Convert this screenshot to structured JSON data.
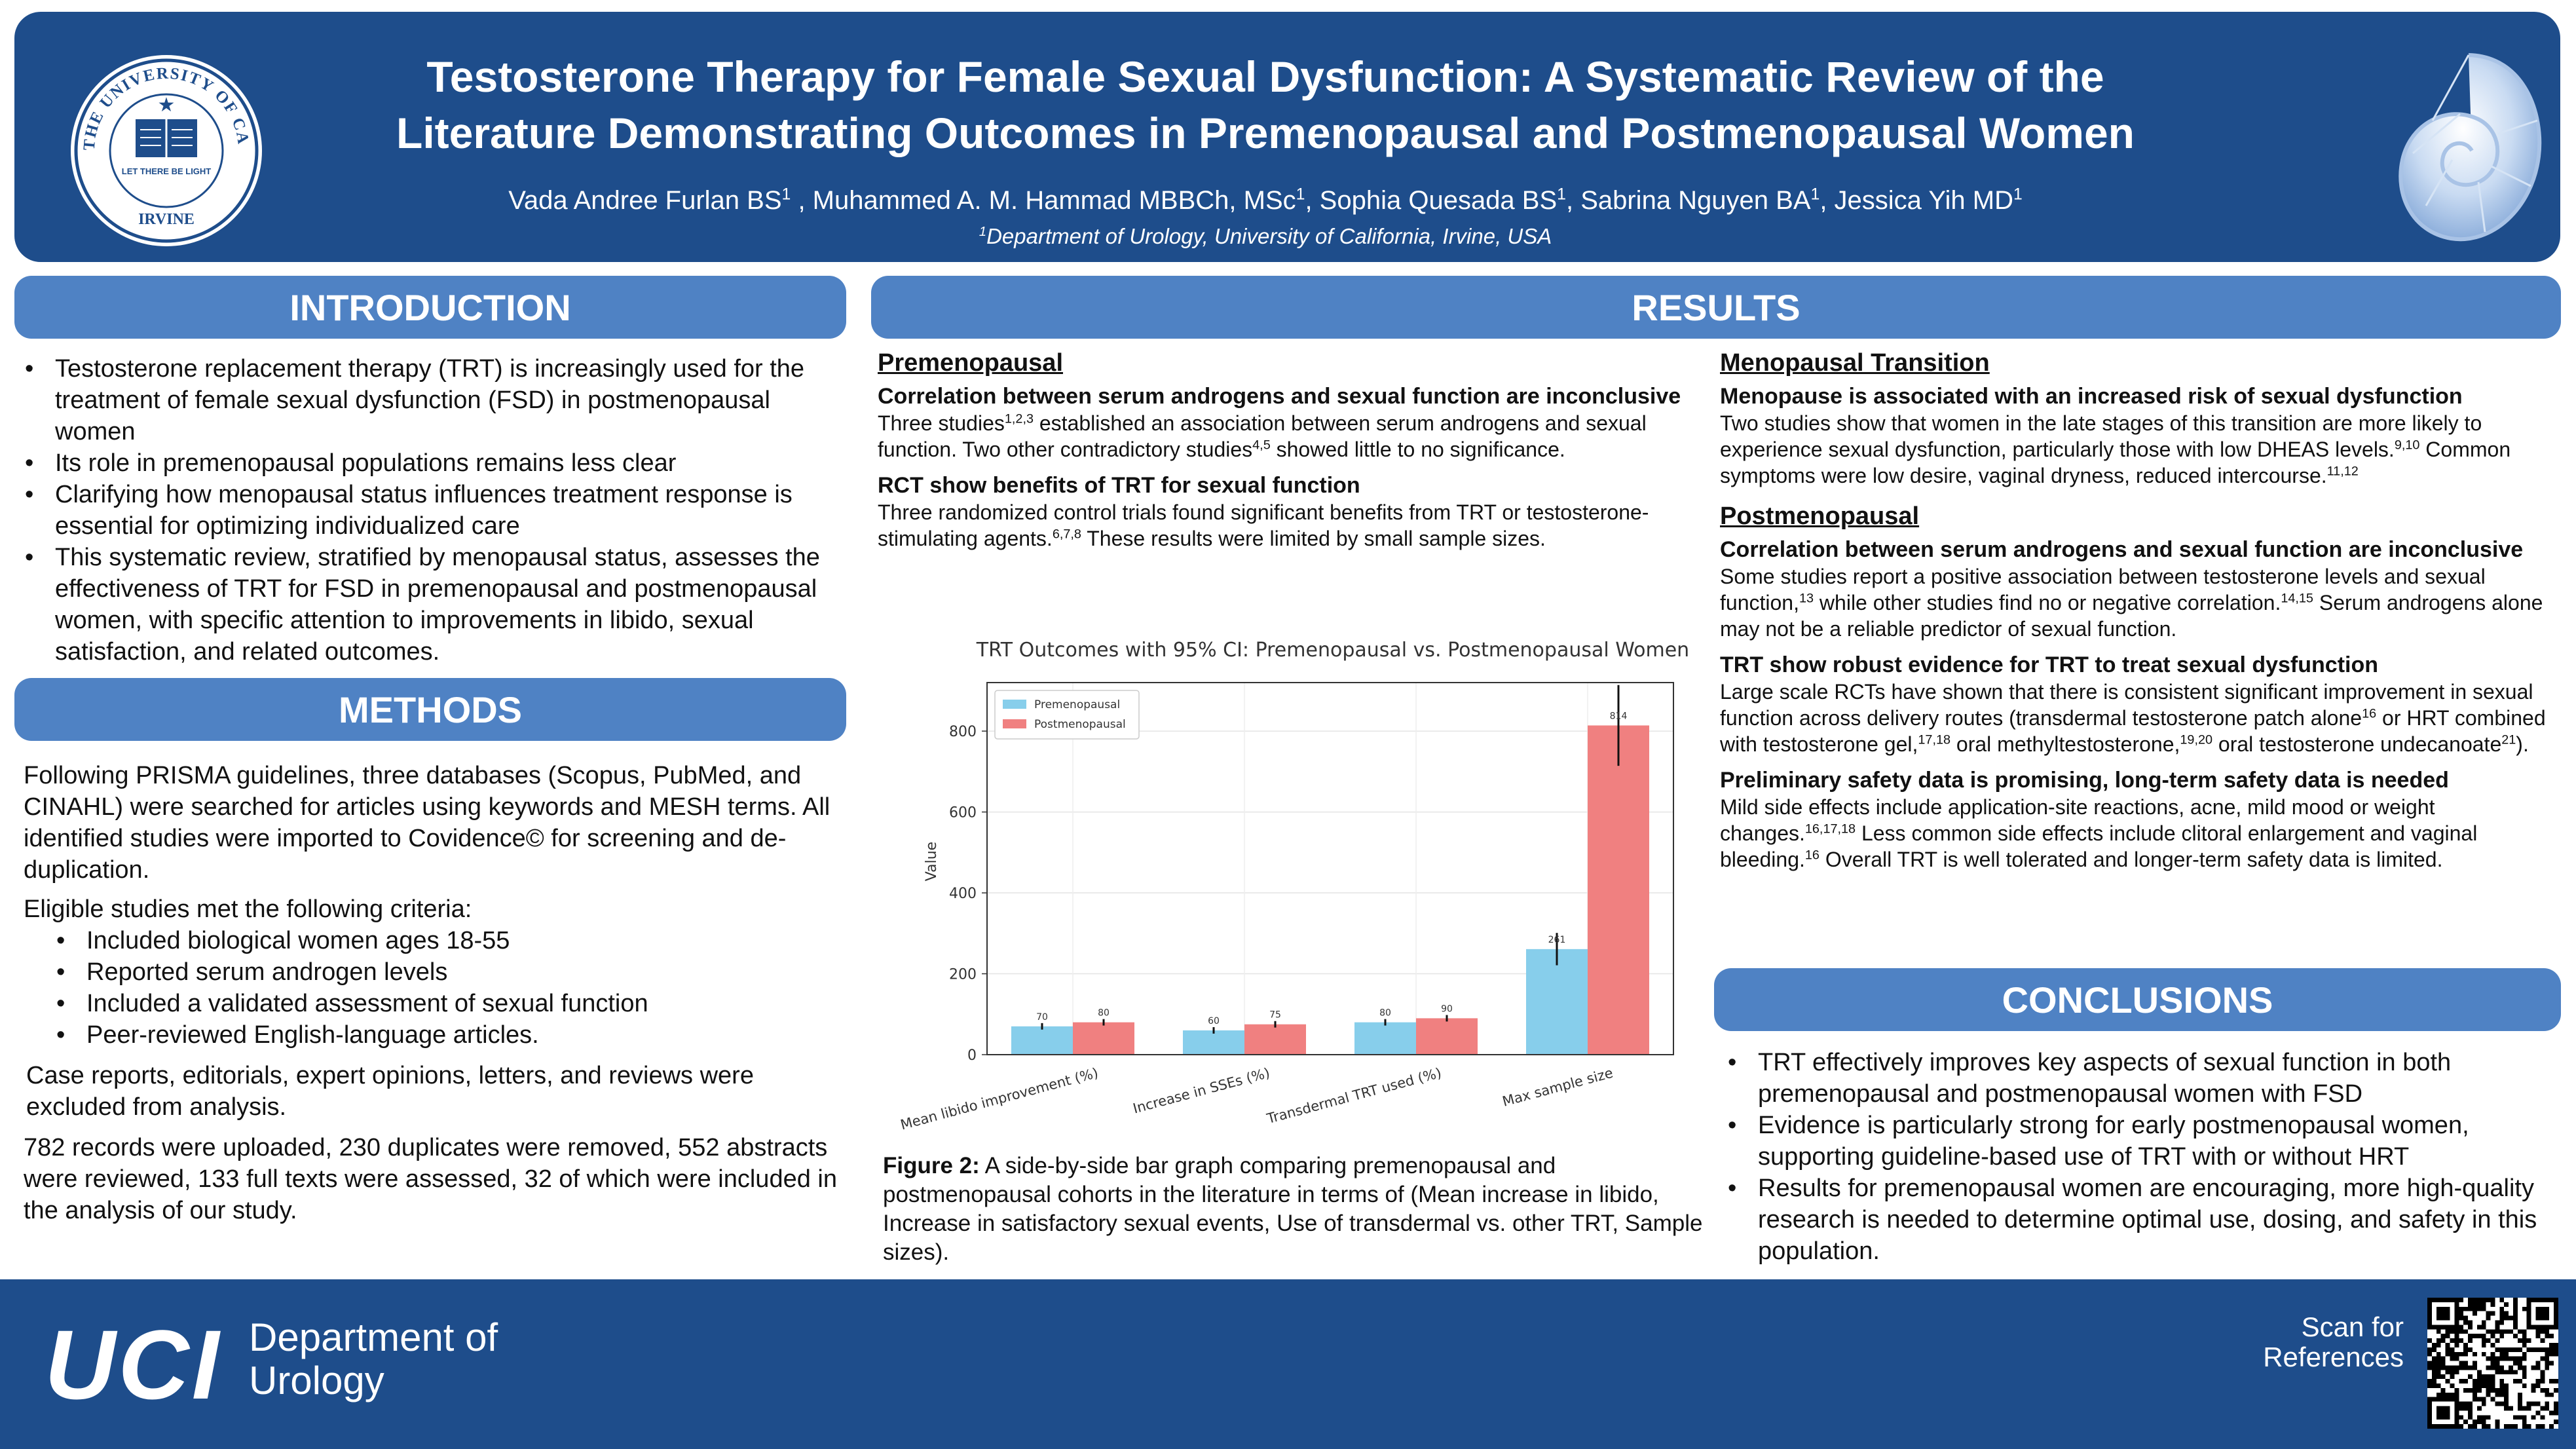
{
  "header": {
    "title_line1": "Testosterone Therapy for Female Sexual Dysfunction: A Systematic Review of the",
    "title_line2": "Literature Demonstrating Outcomes in Premenopausal and Postmenopausal Women",
    "authors": [
      {
        "name": "Vada Andree Furlan BS",
        "sup": "1",
        "sep": " , "
      },
      {
        "name": "Muhammed A. M. Hammad MBBCh, MSc",
        "sup": "1",
        "sep": ", "
      },
      {
        "name": "Sophia Quesada BS",
        "sup": "1",
        "sep": ", "
      },
      {
        "name": "Sabrina Nguyen BA",
        "sup": "1",
        "sep": ", "
      },
      {
        "name": "Jessica Yih MD",
        "sup": "1",
        "sep": ""
      }
    ],
    "affiliation_sup": "1",
    "affiliation": "Department of Urology, University of California, Irvine, USA",
    "seal_text": "THE UNIVERSITY OF CALIFORNIA",
    "seal_bottom": "IRVINE",
    "seal_motto": "LET THERE BE LIGHT"
  },
  "introduction": {
    "heading": "INTRODUCTION",
    "bullets": [
      "Testosterone replacement therapy (TRT) is increasingly used for the treatment of female sexual dysfunction (FSD) in postmenopausal women",
      "Its role in premenopausal populations remains less clear",
      "Clarifying how menopausal status influences treatment response is essential for optimizing individualized care",
      "This systematic review, stratified by menopausal status, assesses the effectiveness of TRT for FSD in premenopausal and postmenopausal women, with specific attention to improvements in libido, sexual satisfaction, and related outcomes."
    ]
  },
  "methods": {
    "heading": "METHODS",
    "p1": "Following PRISMA guidelines, three databases (Scopus, PubMed, and CINAHL) were searched for articles using keywords and MESH terms. All identified studies were imported to Covidence© for screening and de-duplication.",
    "p2": "Eligible studies met the following criteria:",
    "criteria": [
      "Included biological women ages 18-55",
      "Reported serum androgen levels",
      "Included a validated assessment of sexual function",
      "Peer-reviewed English-language articles."
    ],
    "p3": "Case reports, editorials, expert opinions, letters, and reviews were excluded from analysis.",
    "p4": "782 records were uploaded, 230 duplicates were removed, 552 abstracts were reviewed, 133 full texts were assessed, 32 of which were included in the analysis of our study."
  },
  "results": {
    "heading": "RESULTS",
    "pre": {
      "heading": "Premenopausal",
      "s1_title": "Correlation between serum androgens and sexual function are inconclusive",
      "s1_a": "Three studies",
      "s1_sup1": "1,2,3",
      "s1_b": " established an association between serum androgens and sexual function. Two other contradictory studies",
      "s1_sup2": "4,5",
      "s1_c": " showed little to no significance.",
      "s2_title": "RCT show benefits of TRT for sexual function",
      "s2_a": "Three randomized control trials found significant benefits from TRT or testosterone-stimulating agents.",
      "s2_sup": "6,7,8",
      "s2_b": " These results were limited by small sample sizes."
    },
    "figure_caption_label": "Figure 2:",
    "figure_caption": " A side-by-side bar graph comparing premenopausal and postmenopausal cohorts in the literature in terms of (Mean increase in libido, Increase in satisfactory sexual events, Use of transdermal vs. other TRT, Sample sizes).",
    "transition": {
      "heading": "Menopausal Transition",
      "s1_title": "Menopause is associated with an increased risk of sexual dysfunction",
      "s1_a": "Two studies show that women in the late stages of this transition are more likely to experience sexual dysfunction, particularly those with low DHEAS levels.",
      "s1_sup1": "9,10",
      "s1_b": " Common symptoms were low desire, vaginal dryness, reduced intercourse.",
      "s1_sup2": "11,12"
    },
    "post": {
      "heading": "Postmenopausal",
      "s1_title": "Correlation between serum androgens and sexual function are inconclusive",
      "s1_a": "Some studies report a positive association between testosterone levels and sexual function,",
      "s1_sup1": "13",
      "s1_b": " while other studies find no or negative correlation.",
      "s1_sup2": "14,15",
      "s1_c": " Serum androgens alone may not be a reliable predictor of sexual function.",
      "s2_title": "TRT show robust evidence for TRT to treat sexual dysfunction",
      "s2_a": "Large scale RCTs have shown that there is consistent significant improvement in sexual function across delivery routes (transdermal testosterone patch alone",
      "s2_sup1": "16",
      "s2_b": " or HRT combined with testosterone gel,",
      "s2_sup2": "17,18",
      "s2_c": " oral methyltestosterone,",
      "s2_sup3": "19,20",
      "s2_d": " oral testosterone undecanoate",
      "s2_sup4": "21",
      "s2_e": ").",
      "s3_title": "Preliminary safety data is promising, long-term safety data is needed",
      "s3_a": "Mild side effects include application-site reactions, acne, mild mood or weight changes.",
      "s3_sup1": "16,17,18",
      "s3_b": " Less common side effects include clitoral enlargement and vaginal bleeding.",
      "s3_sup2": "16",
      "s3_c": " Overall TRT is well tolerated and longer-term safety data is limited."
    }
  },
  "conclusions": {
    "heading": "CONCLUSIONS",
    "bullets": [
      "TRT effectively improves key aspects of sexual function in both premenopausal and postmenopausal women with FSD",
      "Evidence is particularly strong for early postmenopausal women, supporting guideline-based use of TRT with or without HRT",
      "Results for premenopausal women are encouraging, more high-quality research is needed to determine optimal use, dosing, and safety in this population."
    ]
  },
  "footer": {
    "logo": "UCI",
    "dept_line1": "Department of",
    "dept_line2": "Urology",
    "scan_line1": "Scan for",
    "scan_line2": "References"
  },
  "colors": {
    "navy": "#1e4d8b",
    "banner": "#4f82c4",
    "pre": "#87ceeb",
    "post": "#f08080"
  },
  "chart_data": {
    "type": "bar",
    "title": "TRT Outcomes with 95% CI: Premenopausal vs. Postmenopausal Women",
    "xlabel": "",
    "ylabel": "Value",
    "ylim": [
      0,
      920
    ],
    "yticks": [
      0,
      200,
      400,
      600,
      800
    ],
    "categories": [
      "Mean libido improvement (%)",
      "Increase in SSEs (%)",
      "Transdermal TRT used (%)",
      "Max sample size"
    ],
    "series": [
      {
        "name": "Premenopausal",
        "color": "#87ceeb",
        "values": [
          70,
          60,
          80,
          261
        ],
        "ci": [
          [
            62,
            78
          ],
          [
            52,
            68
          ],
          [
            72,
            88
          ],
          [
            221,
            301
          ]
        ]
      },
      {
        "name": "Postmenopausal",
        "color": "#f08080",
        "values": [
          80,
          75,
          90,
          814
        ],
        "ci": [
          [
            72,
            88
          ],
          [
            67,
            83
          ],
          [
            82,
            98
          ],
          [
            714,
            914
          ]
        ]
      }
    ],
    "legend": "top-left",
    "grid": true
  }
}
